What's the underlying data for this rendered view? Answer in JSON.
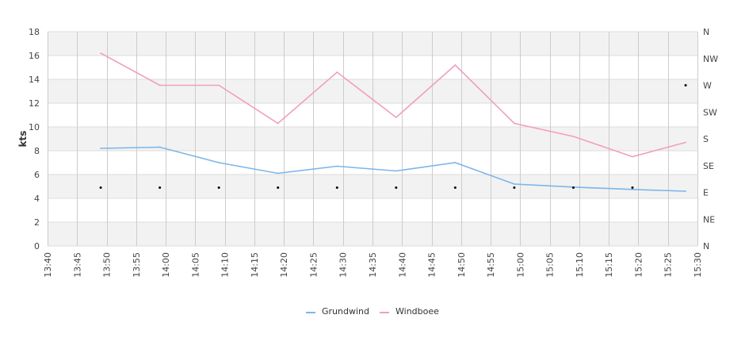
{
  "chart_data": {
    "type": "line",
    "ylabel": "kts",
    "ylim": [
      0,
      18
    ],
    "yticks": [
      0,
      2,
      4,
      6,
      8,
      10,
      12,
      14,
      16,
      18
    ],
    "y2ticks": [
      "N",
      "NE",
      "E",
      "SE",
      "S",
      "SW",
      "W",
      "NW",
      "N"
    ],
    "xticks": [
      "13:40",
      "13:45",
      "13:50",
      "13:55",
      "14:00",
      "14:05",
      "14:10",
      "14:15",
      "14:20",
      "14:25",
      "14:30",
      "14:35",
      "14:40",
      "14:45",
      "14:50",
      "14:55",
      "15:00",
      "15:05",
      "15:10",
      "15:15",
      "15:20",
      "15:25",
      "15:30"
    ],
    "xlim": [
      "13:40",
      "15:30"
    ],
    "grid": true,
    "legend_position": "bottom-center",
    "series": [
      {
        "name": "Grundwind",
        "color": "#7cb5ec",
        "points": [
          [
            "13:49",
            8.2
          ],
          [
            "13:59",
            8.3
          ],
          [
            "14:09",
            7.0
          ],
          [
            "14:19",
            6.1
          ],
          [
            "14:29",
            6.7
          ],
          [
            "14:39",
            6.3
          ],
          [
            "14:49",
            7.0
          ],
          [
            "14:59",
            5.2
          ],
          [
            "15:09",
            4.95
          ],
          [
            "15:19",
            4.75
          ],
          [
            "15:28",
            4.6
          ]
        ]
      },
      {
        "name": "Windboee",
        "color": "#f19ec2",
        "points": [
          [
            "13:49",
            16.2
          ],
          [
            "13:59",
            13.5
          ],
          [
            "14:09",
            13.5
          ],
          [
            "14:19",
            10.3
          ],
          [
            "14:29",
            14.6
          ],
          [
            "14:39",
            10.8
          ],
          [
            "14:49",
            15.2
          ],
          [
            "14:59",
            10.3
          ],
          [
            "15:09",
            9.2
          ],
          [
            "15:19",
            7.5
          ],
          [
            "15:28",
            8.7
          ]
        ]
      }
    ],
    "direction": {
      "color": "#000000",
      "points": [
        [
          "13:49",
          4.9
        ],
        [
          "13:59",
          4.9
        ],
        [
          "14:09",
          4.9
        ],
        [
          "14:19",
          4.9
        ],
        [
          "14:29",
          4.9
        ],
        [
          "14:39",
          4.9
        ],
        [
          "14:49",
          4.9
        ],
        [
          "14:59",
          4.9
        ],
        [
          "15:09",
          4.9
        ],
        [
          "15:19",
          4.9
        ],
        [
          "15:28",
          13.5
        ]
      ]
    }
  }
}
